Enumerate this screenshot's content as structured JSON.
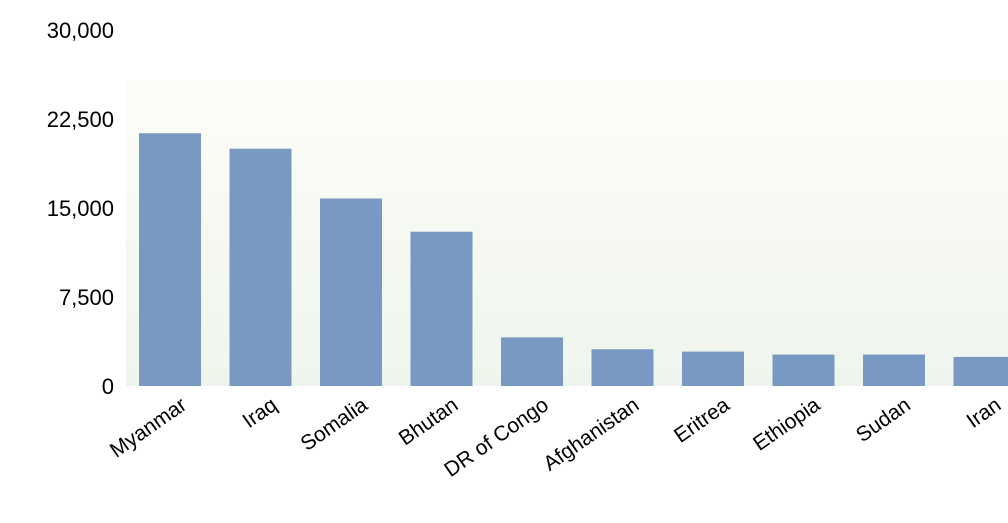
{
  "chart_data": {
    "type": "bar",
    "title": "",
    "xlabel": "",
    "ylabel": "",
    "categories": [
      "Myanmar",
      "Iraq",
      "Somalia",
      "Bhutan",
      "DR of Congo",
      "Afghanistan",
      "Eritrea",
      "Ethiopia",
      "Sudan",
      "Iran"
    ],
    "values": [
      21300,
      20000,
      15800,
      13000,
      4100,
      3100,
      2900,
      2650,
      2650,
      2450
    ],
    "ylim": [
      0,
      30000
    ],
    "yticks": [
      "0",
      "7,500",
      "15,000",
      "22,500",
      "30,000"
    ],
    "ytick_values": [
      0,
      7500,
      15000,
      22500,
      30000
    ],
    "grid": false,
    "legend": "none",
    "colors": {
      "bar": "#7799c2",
      "plot_bg_top": "#fdfdf8",
      "plot_bg_bottom": "#eef5ec",
      "text": "#000000"
    }
  }
}
